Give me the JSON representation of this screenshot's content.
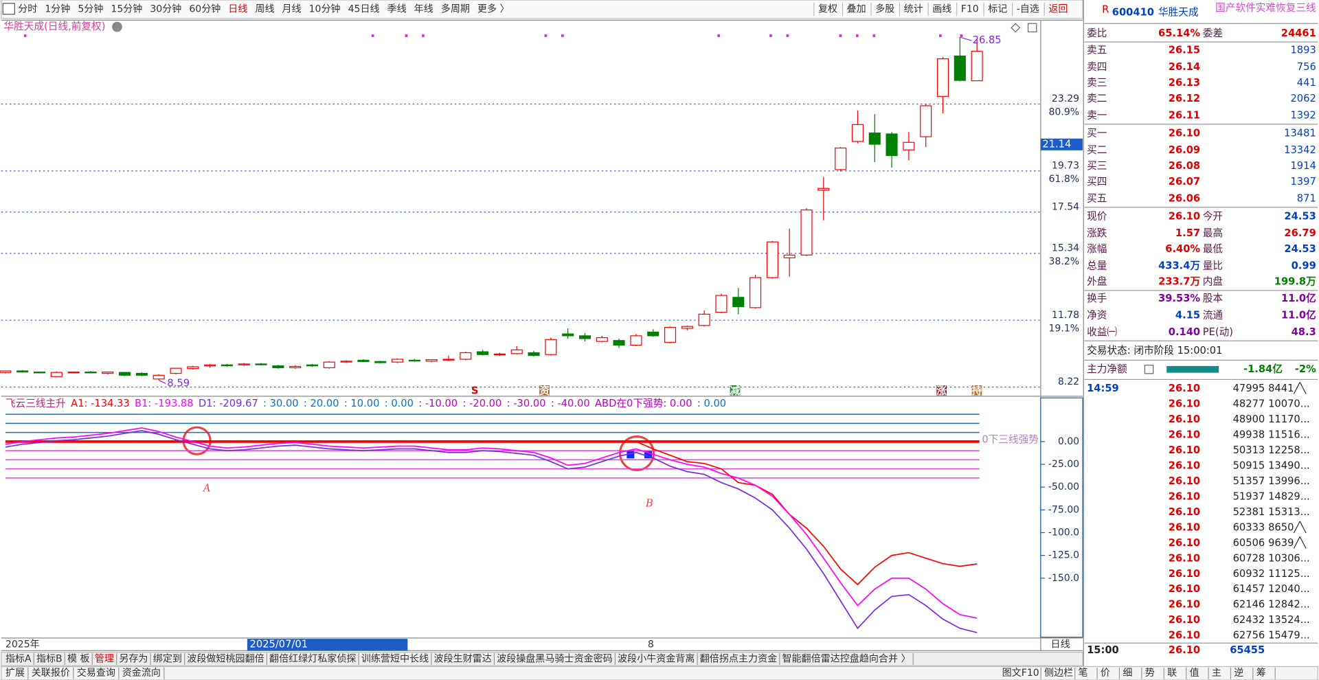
{
  "toolbar": {
    "left": [
      "分时",
      "1分钟",
      "5分钟",
      "15分钟",
      "30分钟",
      "60分钟",
      "日线",
      "周线",
      "月线",
      "10分钟",
      "45日线",
      "季线",
      "年线",
      "多周期",
      "更多 〉"
    ],
    "right": [
      "复权",
      "叠加",
      "多股",
      "统计",
      "画线",
      "F10",
      "标记",
      "-自选",
      "返回"
    ]
  },
  "chart_data": [
    {
      "type": "candlestick",
      "title": "华胜天成(日线,前复权)",
      "open": [
        9.0,
        9.08,
        9.02,
        8.78,
        9.0,
        9.02,
        8.95,
        9.0,
        8.95,
        8.65,
        8.95,
        9.2,
        9.35,
        9.4,
        9.4,
        9.45,
        9.35,
        9.25,
        9.4,
        9.25,
        9.55,
        9.65,
        9.58,
        9.55,
        9.65,
        9.6,
        9.7,
        9.7,
        10.1,
        9.95,
        10.0,
        10.05,
        9.95,
        11.05,
        10.95,
        10.65,
        10.7,
        10.45,
        11.15,
        10.6,
        11.35,
        11.5,
        12.2,
        13.0,
        12.45,
        14.05,
        15.1,
        15.25,
        18.7,
        19.8,
        21.3,
        21.75,
        21.7,
        20.85,
        21.55,
        23.7,
        25.85,
        24.53
      ],
      "high": [
        9.1,
        9.12,
        9.05,
        9.05,
        9.05,
        9.08,
        9.05,
        9.02,
        9.0,
        8.9,
        9.25,
        9.35,
        9.45,
        9.45,
        9.5,
        9.5,
        9.4,
        9.38,
        9.45,
        9.6,
        9.65,
        9.7,
        9.62,
        9.75,
        9.72,
        9.7,
        9.9,
        10.1,
        10.2,
        10.05,
        10.4,
        10.15,
        10.85,
        11.35,
        11.1,
        10.95,
        10.8,
        11.05,
        11.3,
        11.45,
        11.5,
        12.3,
        13.2,
        13.5,
        14.2,
        16.0,
        16.65,
        17.75,
        19.4,
        21.0,
        22.95,
        22.75,
        21.8,
        21.8,
        23.3,
        25.8,
        26.85,
        26.79
      ],
      "low": [
        8.95,
        9.0,
        8.95,
        8.75,
        8.95,
        8.95,
        8.9,
        8.8,
        8.8,
        8.59,
        8.9,
        9.15,
        9.25,
        9.3,
        9.35,
        9.38,
        9.2,
        9.2,
        9.3,
        9.2,
        9.5,
        9.55,
        9.48,
        9.5,
        9.58,
        9.55,
        9.6,
        9.65,
        9.9,
        9.88,
        9.95,
        9.85,
        9.9,
        10.8,
        10.65,
        10.6,
        10.3,
        10.4,
        10.9,
        10.55,
        11.25,
        11.45,
        12.15,
        12.1,
        12.4,
        14.0,
        14.1,
        15.2,
        17.1,
        19.7,
        21.2,
        20.2,
        19.9,
        20.3,
        21.0,
        22.8,
        24.5,
        24.53
      ],
      "close": [
        9.08,
        9.02,
        9.0,
        9.0,
        9.02,
        9.0,
        9.02,
        8.85,
        8.85,
        8.85,
        9.22,
        9.3,
        9.4,
        9.38,
        9.45,
        9.42,
        9.25,
        9.32,
        9.35,
        9.55,
        9.6,
        9.58,
        9.52,
        9.7,
        9.62,
        9.68,
        9.7,
        10.05,
        9.95,
        9.98,
        10.2,
        9.9,
        10.75,
        10.95,
        10.8,
        10.85,
        10.45,
        10.95,
        10.95,
        11.4,
        11.45,
        12.1,
        13.1,
        12.5,
        14.05,
        15.95,
        15.25,
        17.65,
        18.8,
        20.95,
        22.2,
        21.15,
        20.55,
        21.25,
        23.2,
        25.7,
        24.55,
        26.1
      ],
      "up_color": "#ff0000",
      "down_color": "#008000",
      "grid": true,
      "ylim": [
        7.82,
        27.58
      ],
      "yticks": [
        8.22,
        11.78,
        15.34,
        17.54,
        19.73,
        23.29
      ],
      "fib_labels": [
        "80.9%",
        "61.8%",
        "38.2%",
        "19.1%"
      ],
      "max_label": 26.85,
      "min_label": 8.59,
      "cursor_price": 21.14
    },
    {
      "type": "line",
      "title": "飞云三线主升",
      "series": [
        {
          "color": "#ff0000",
          "values": [
            0,
            0,
            0,
            0,
            0,
            0,
            0,
            0,
            0,
            0,
            0,
            0,
            0,
            0,
            0,
            0,
            0,
            0,
            0,
            0,
            0,
            0,
            0,
            0,
            0,
            0,
            0,
            0,
            0,
            0,
            0,
            0,
            0,
            0,
            0,
            0,
            0,
            0,
            -8,
            -15,
            -22,
            -24,
            -30,
            -45,
            -48,
            -58,
            -80,
            -95,
            -115,
            -140,
            -157,
            -138,
            -125,
            -122,
            -128,
            -134,
            -137,
            -134.33
          ]
        },
        {
          "color": "#ff00ff",
          "values": [
            -3,
            0,
            2,
            4,
            5,
            7,
            9,
            12,
            15,
            11,
            5,
            0,
            -5,
            -7,
            -6,
            -4,
            -2,
            -1,
            -3,
            -5,
            -6,
            -7,
            -6,
            -5,
            -5,
            -7,
            -9,
            -9,
            -7,
            -8,
            -10,
            -12,
            -18,
            -26,
            -24,
            -18,
            -12,
            -8,
            -14,
            -20,
            -25,
            -28,
            -35,
            -40,
            -48,
            -60,
            -80,
            -102,
            -128,
            -155,
            -180,
            -162,
            -150,
            -150,
            -162,
            -178,
            -190,
            -193.88
          ]
        },
        {
          "color": "#7a28e6",
          "values": [
            -6,
            -3,
            -1,
            1,
            2,
            4,
            6,
            9,
            12,
            8,
            2,
            -3,
            -8,
            -10,
            -9,
            -7,
            -5,
            -4,
            -6,
            -8,
            -9,
            -10,
            -9,
            -8,
            -8,
            -10,
            -12,
            -12,
            -10,
            -11,
            -13,
            -15,
            -22,
            -30,
            -28,
            -22,
            -16,
            -12,
            -18,
            -27,
            -33,
            -36,
            -45,
            -52,
            -62,
            -75,
            -95,
            -118,
            -145,
            -175,
            -205,
            -185,
            -170,
            -168,
            -180,
            -195,
            -205,
            -209.67
          ]
        }
      ],
      "legend_items": [
        {
          "text": "A1: -134.33",
          "color": "#ff0000"
        },
        {
          "text": "B1: -193.88",
          "color": "#ff00ff"
        },
        {
          "text": "D1: -209.67",
          "color": "#7a28e6"
        },
        {
          "text": ": 30.00",
          "color": "#1070c0"
        },
        {
          "text": ": 20.00",
          "color": "#1070c0"
        },
        {
          "text": ": 10.00",
          "color": "#1070c0"
        },
        {
          "text": ": 0.00",
          "color": "#1070c0"
        },
        {
          "text": ": -10.00",
          "color": "#c000c0"
        },
        {
          "text": ": -20.00",
          "color": "#c000c0"
        },
        {
          "text": ": -30.00",
          "color": "#c000c0"
        },
        {
          "text": ": -40.00",
          "color": "#c000c0"
        },
        {
          "text": "ABD在0下强势: 0.00",
          "color": "#c000c0"
        },
        {
          "text": ": 0.00",
          "color": "#1070c0"
        }
      ],
      "levels": [
        30,
        20,
        10,
        0,
        -10,
        -20,
        -30,
        -40
      ],
      "level_colors": [
        "#1070c0",
        "#1070c0",
        "#1070c0",
        "#ff0000",
        "#e040e0",
        "#e040e0",
        "#e040e0",
        "#e040e0"
      ],
      "level_label": "0下三线强势",
      "ylim": [
        -215.7,
        47
      ],
      "yticks": [
        {
          "value": 0,
          "label": "0.00"
        },
        {
          "value": -25,
          "label": "-25.00"
        },
        {
          "value": -50,
          "label": "-50.00"
        },
        {
          "value": -75,
          "label": "-75.00"
        },
        {
          "value": -100,
          "label": "-100.0"
        },
        {
          "value": -125,
          "label": "-125.0"
        },
        {
          "value": -150,
          "label": "-150.0"
        }
      ]
    }
  ],
  "signals": [
    "S",
    "资",
    "减",
    "涨",
    "持"
  ],
  "annotations": [
    "A",
    "B"
  ],
  "date_bar": {
    "year": "2025年",
    "cursor": "2025/07/01",
    "mark": "8",
    "period": "日线"
  },
  "tabs": [
    "指标A",
    "指标B",
    "模 板",
    "管理",
    "另存为",
    "绑定到",
    "波段做短桃园翻倍",
    "翻倍红绿灯私家侦探",
    "训练营短中长线",
    "波段生财雷达",
    "波段操盘黑马骑士资金密码",
    "波段小牛资金背离",
    "翻倍拐点主力资金",
    "智能翻倍雷达控盘趋向合并 〉"
  ],
  "bottom_left": [
    "扩展",
    "关联报价",
    "交易查询",
    "资金流向"
  ],
  "bottom_right": [
    "图文F10",
    "侧边栏",
    "笔",
    "价",
    "细",
    "势",
    "联",
    "值",
    "主",
    "逆",
    "筹"
  ],
  "quote_header": {
    "flag": "R",
    "code": "600410",
    "name": "华胜天成",
    "scroll": "国产软件实难恢复三线"
  },
  "order_book": {
    "ratio": [
      "委比",
      "65.14%",
      "委差",
      "24461"
    ],
    "asks": [
      [
        "卖五",
        "26.15",
        "1893"
      ],
      [
        "卖四",
        "26.14",
        "756"
      ],
      [
        "卖三",
        "26.13",
        "441"
      ],
      [
        "卖二",
        "26.12",
        "2062"
      ],
      [
        "卖一",
        "26.11",
        "1392"
      ]
    ],
    "bids": [
      [
        "买一",
        "26.10",
        "13481"
      ],
      [
        "买二",
        "26.09",
        "13342"
      ],
      [
        "买三",
        "26.08",
        "1914"
      ],
      [
        "买四",
        "26.07",
        "1397"
      ],
      [
        "买五",
        "26.06",
        "871"
      ]
    ]
  },
  "quote": [
    [
      "现价",
      "26.10",
      "今开",
      "24.53"
    ],
    [
      "涨跌",
      "1.57",
      "最高",
      "26.79"
    ],
    [
      "涨幅",
      "6.40%",
      "最低",
      "24.53"
    ],
    [
      "总量",
      "433.4万",
      "量比",
      "0.99"
    ],
    [
      "外盘",
      "233.7万",
      "内盘",
      "199.8万"
    ],
    [
      "换手",
      "39.53%",
      "股本",
      "11.0亿"
    ],
    [
      "净资",
      "4.15",
      "流通",
      "11.0亿"
    ],
    [
      "收益㈠",
      "0.140",
      "PE(动)",
      "48.3"
    ]
  ],
  "status": "交易状态: 闭市阶段 15:00:01",
  "main_flow": [
    "主力净额",
    "-1.84亿",
    "-2%"
  ],
  "ticks": [
    {
      "time": "14:59",
      "price": "26.10",
      "volume": "47995",
      "extra": "8441╱╲"
    },
    {
      "price": "26.10",
      "volume": "48277",
      "extra": "10070..."
    },
    {
      "price": "26.10",
      "volume": "48900",
      "extra": "11170..."
    },
    {
      "price": "26.10",
      "volume": "49938",
      "extra": "11516..."
    },
    {
      "price": "26.10",
      "volume": "50313",
      "extra": "12258..."
    },
    {
      "price": "26.10",
      "volume": "50915",
      "extra": "13490..."
    },
    {
      "price": "26.10",
      "volume": "51357",
      "extra": "13996..."
    },
    {
      "price": "26.10",
      "volume": "51937",
      "extra": "14829..."
    },
    {
      "price": "26.10",
      "volume": "52381",
      "extra": "15313..."
    },
    {
      "price": "26.10",
      "volume": "60333",
      "extra": "8650╱╲"
    },
    {
      "price": "26.10",
      "volume": "60506",
      "extra": "9639╱╲"
    },
    {
      "price": "26.10",
      "volume": "60728",
      "extra": "10306..."
    },
    {
      "price": "26.10",
      "volume": "60932",
      "extra": "11125..."
    },
    {
      "price": "26.10",
      "volume": "61457",
      "extra": "12040..."
    },
    {
      "price": "26.10",
      "volume": "62146",
      "extra": "12842..."
    },
    {
      "price": "26.10",
      "volume": "62432",
      "extra": "13524..."
    },
    {
      "price": "26.10",
      "volume": "62756",
      "extra": "15479..."
    }
  ],
  "close_tick": {
    "time": "15:00",
    "price": "26.10",
    "volume": "65455"
  }
}
